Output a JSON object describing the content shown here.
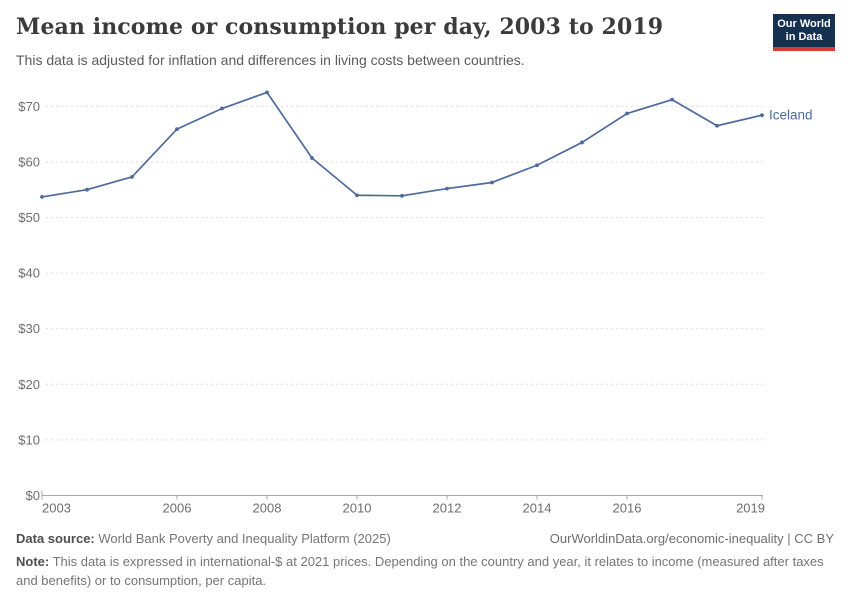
{
  "header": {
    "title": "Mean income or consumption per day, 2003 to 2019",
    "subtitle": "This data is adjusted for inflation and differences in living costs between countries.",
    "logo_line1": "Our World",
    "logo_line2": "in Data"
  },
  "chart_data": {
    "type": "line",
    "title": "Mean income or consumption per day, 2003 to 2019",
    "x": [
      2003,
      2004,
      2005,
      2006,
      2007,
      2008,
      2009,
      2010,
      2011,
      2012,
      2013,
      2014,
      2015,
      2016,
      2017,
      2018,
      2019
    ],
    "series": [
      {
        "name": "Iceland",
        "color": "#4c6a9c",
        "values": [
          53.7,
          55.0,
          57.3,
          65.9,
          69.6,
          72.5,
          60.7,
          54.0,
          53.9,
          55.2,
          56.3,
          59.4,
          63.5,
          68.7,
          71.2,
          66.5,
          68.4
        ]
      }
    ],
    "x_ticks": [
      "2003",
      "2006",
      "2008",
      "2010",
      "2012",
      "2014",
      "2016",
      "2019"
    ],
    "y_ticks": [
      "$0",
      "$10",
      "$20",
      "$30",
      "$40",
      "$50",
      "$60",
      "$70"
    ],
    "xlim": [
      2003,
      2019
    ],
    "ylim": [
      0,
      74
    ],
    "xlabel": "",
    "ylabel": "",
    "grid": "horizontal-dashed",
    "legend_position": "end-of-line-label",
    "entity_label": "Iceland"
  },
  "footer": {
    "datasource_label": "Data source:",
    "datasource_value": "World Bank Poverty and Inequality Platform (2025)",
    "link": "OurWorldinData.org/economic-inequality | CC BY",
    "note_label": "Note:",
    "note_value": "This data is expressed in international-$ at 2021 prices. Depending on the country and year, it relates to income (measured after taxes and benefits) or to consumption, per capita."
  },
  "colors": {
    "series_blue": "#4c6a9c",
    "title_text": "#3b3b3b",
    "subtitle_text": "#5b5b5b",
    "axis_text": "#6e6e6e",
    "gridline": "#dddddd",
    "axis_line": "#a8a8a8",
    "logo_navy": "#16304f",
    "logo_red": "#d73a34",
    "background": "#ffffff"
  }
}
